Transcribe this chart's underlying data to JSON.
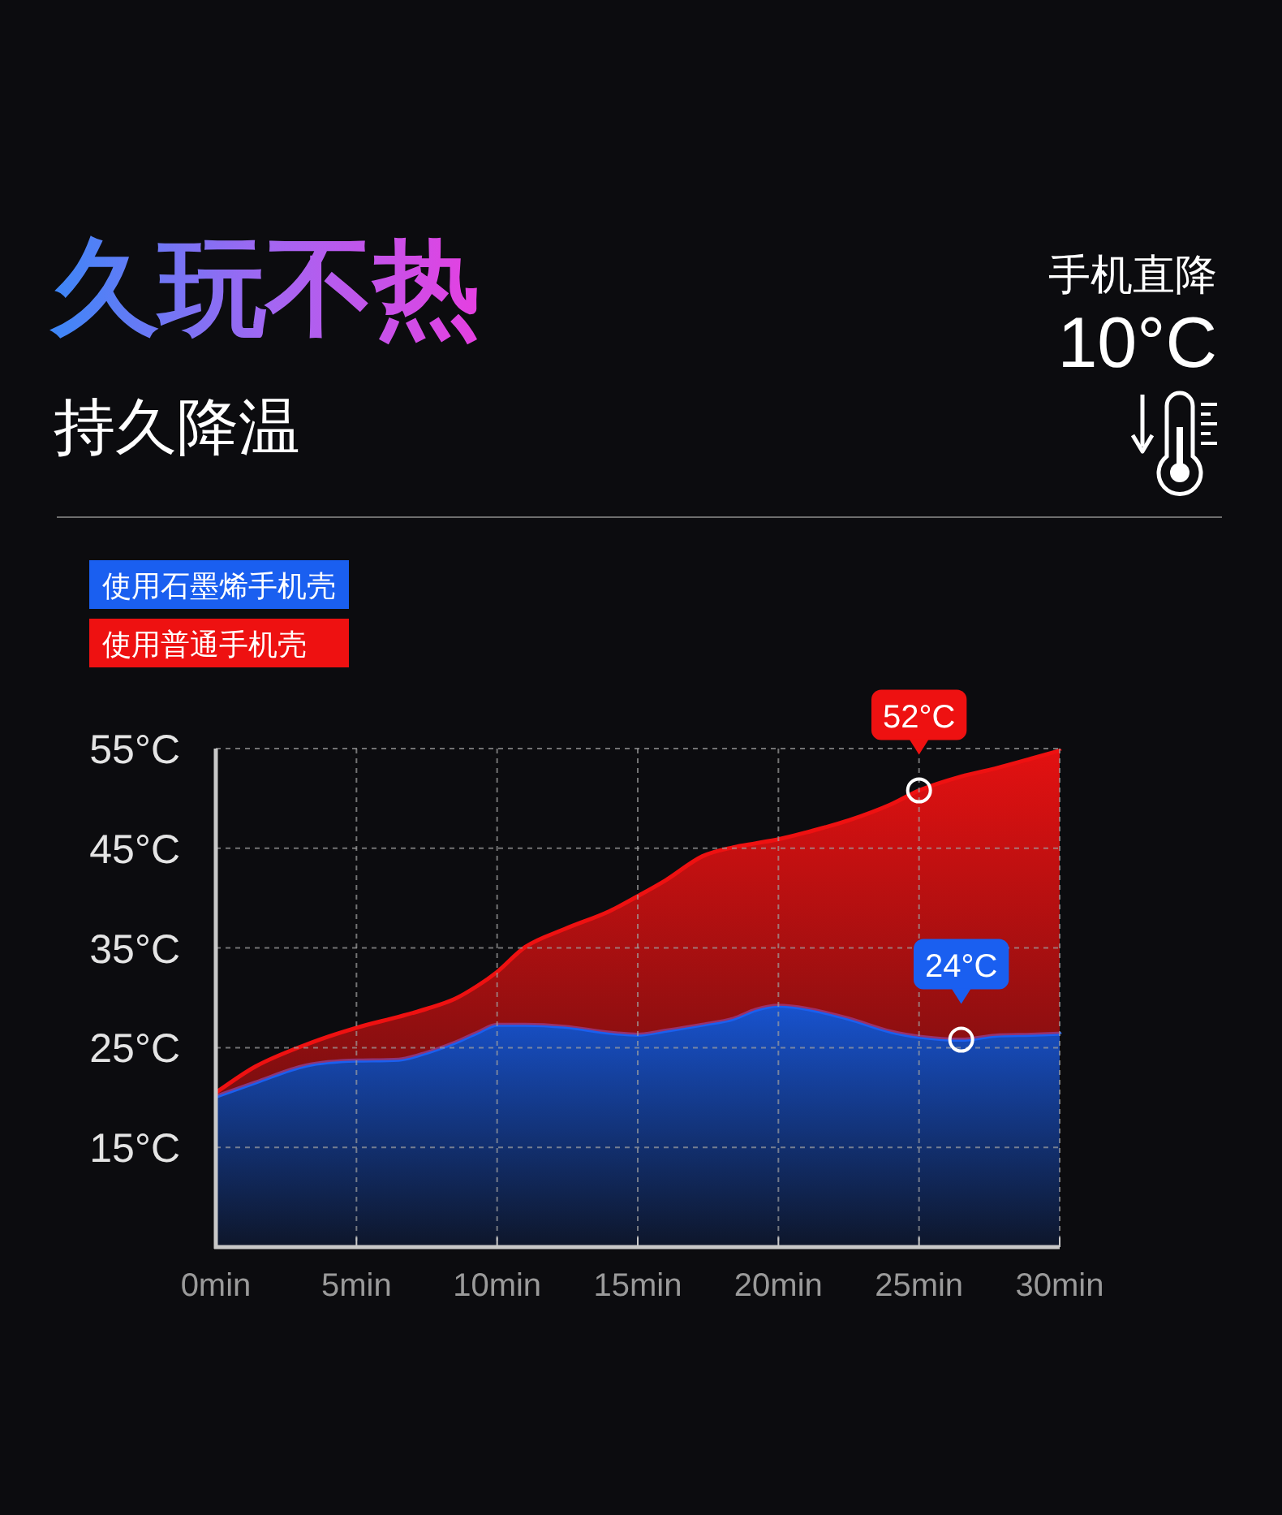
{
  "chart_data": {
    "type": "area",
    "title": "久玩不热",
    "subtitle": "持久降温",
    "x": [
      0,
      1.4,
      3.2,
      5,
      6.5,
      7.5,
      8.5,
      9.3,
      10,
      11,
      12.4,
      14,
      15,
      16,
      17.3,
      18.4,
      19.2,
      20,
      21,
      22.5,
      24,
      25,
      26.5,
      27.7,
      29,
      30
    ],
    "series": [
      {
        "name": "使用石墨烯手机壳",
        "color": "#1a5ff0",
        "values": [
          20.1,
          21.5,
          23.2,
          23.7,
          23.8,
          24.5,
          25.5,
          26.5,
          27.3,
          27.3,
          27.1,
          26.5,
          26.3,
          26.7,
          27.3,
          27.9,
          28.8,
          29.2,
          28.9,
          27.9,
          26.6,
          26.1,
          25.8,
          26.2,
          26.3,
          26.4
        ]
      },
      {
        "name": "使用普通手机壳",
        "color": "#ee1111",
        "values": [
          20.5,
          23.1,
          25.3,
          27.0,
          28.1,
          28.9,
          29.9,
          31.2,
          32.6,
          35.1,
          36.9,
          38.7,
          40.2,
          41.8,
          44.2,
          45.1,
          45.5,
          45.9,
          46.6,
          47.8,
          49.4,
          50.8,
          52.2,
          53.0,
          54.0,
          54.8
        ]
      }
    ],
    "xlim": [
      0,
      30
    ],
    "xticks": [
      {
        "value": 0,
        "label": "0min"
      },
      {
        "value": 5,
        "label": "5min"
      },
      {
        "value": 10,
        "label": "10min"
      },
      {
        "value": 15,
        "label": "15min"
      },
      {
        "value": 20,
        "label": "20min"
      },
      {
        "value": 25,
        "label": "25min"
      },
      {
        "value": 30,
        "label": "30min"
      }
    ],
    "ylim": [
      5,
      55
    ],
    "yticks": [
      {
        "value": 15,
        "label": "15°C"
      },
      {
        "value": 25,
        "label": "25°C"
      },
      {
        "value": 35,
        "label": "35°C"
      },
      {
        "value": 45,
        "label": "45°C"
      },
      {
        "value": 55,
        "label": "55°C"
      }
    ],
    "grid": true,
    "legend": "top left",
    "annotations": [
      "手机直降",
      "10°C",
      {
        "text": "52°C",
        "x": 25,
        "y": 50.8
      },
      {
        "text": "24°C",
        "x": 26.5,
        "y": 25.8
      }
    ]
  }
}
